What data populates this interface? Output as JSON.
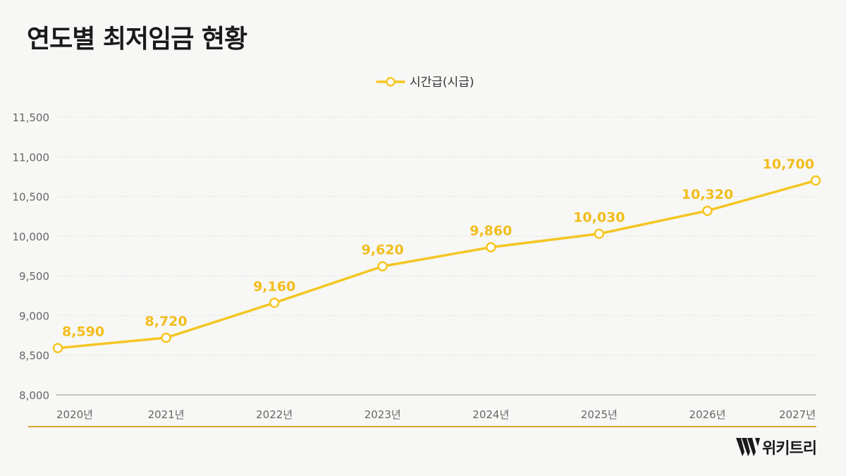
{
  "title": "연도별 최저임금 현황",
  "brand": {
    "name": "위키트리"
  },
  "colors": {
    "line": "#f5c623",
    "label": "#f2bd1d",
    "axis": "#b3b3b3",
    "grid": "#dcdcdc",
    "tick_text": "#666666",
    "footer_line": "#d4a52a"
  },
  "chart_data": {
    "type": "line",
    "title": "",
    "xlabel": "",
    "ylabel": "",
    "categories": [
      "2020년",
      "2021년",
      "2022년",
      "2023년",
      "2024년",
      "2025년",
      "2026년",
      "2027년"
    ],
    "series": [
      {
        "name": "시간급(시급)",
        "values": [
          8590,
          8720,
          9160,
          9620,
          9860,
          10030,
          10320,
          10700
        ],
        "labels": [
          "8,590",
          "8,720",
          "9,160",
          "9,620",
          "9,860",
          "10,030",
          "10,320",
          "10,700"
        ]
      }
    ],
    "ylim": [
      8000,
      11500
    ],
    "yticks": [
      8000,
      8500,
      9000,
      9500,
      10000,
      10500,
      11000,
      11500
    ],
    "ytick_labels": [
      "8,000",
      "8,500",
      "9,000",
      "9,500",
      "10,000",
      "10,500",
      "11,000",
      "11,500"
    ],
    "grid": true,
    "legend": "top-center"
  }
}
